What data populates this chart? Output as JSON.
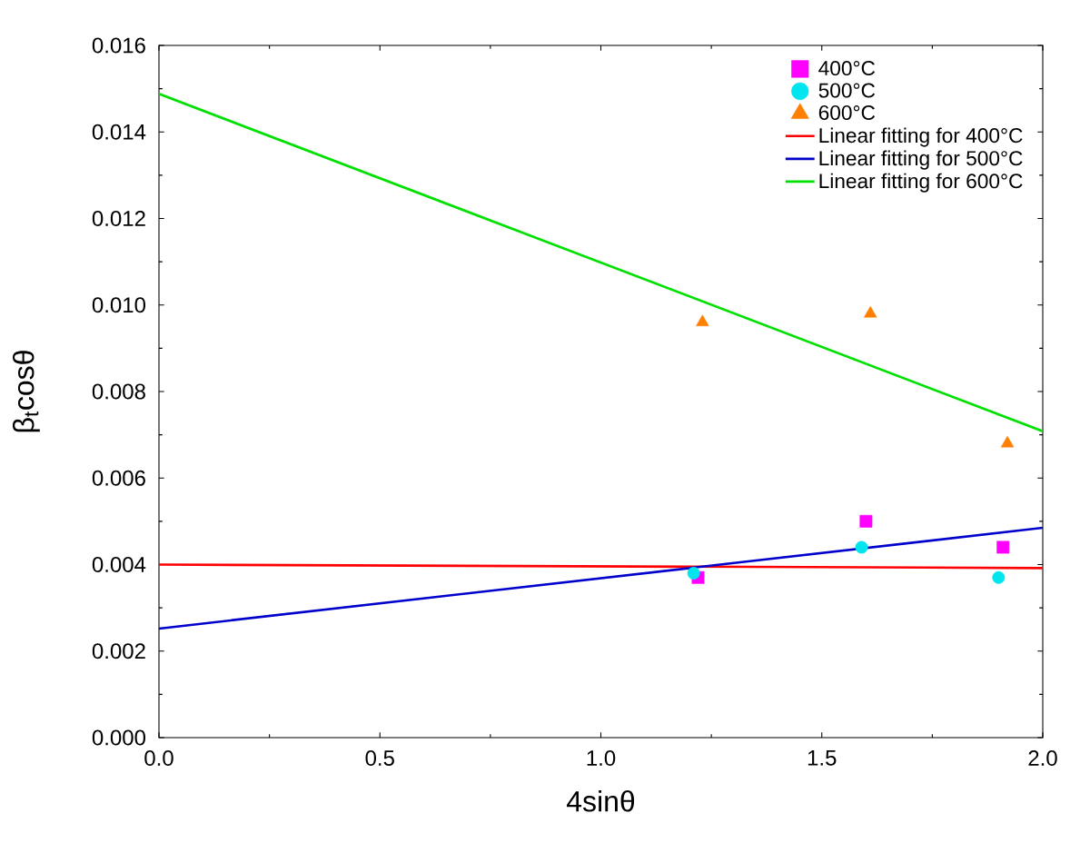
{
  "chart_data": {
    "type": "scatter",
    "xlabel": "4sinθ",
    "ylabel": "β$_{t}$cosθ",
    "xlim": [
      0,
      2
    ],
    "ylim": [
      0,
      0.016
    ],
    "xticks": [
      {
        "value": 0,
        "label": "0.0"
      },
      {
        "value": 0.5,
        "label": "0.5"
      },
      {
        "value": 1,
        "label": "1.0"
      },
      {
        "value": 1.5,
        "label": "1.5"
      },
      {
        "value": 2,
        "label": "2.0"
      }
    ],
    "yticks": [
      {
        "value": 0,
        "label": "0.000"
      },
      {
        "value": 0.002,
        "label": "0.002"
      },
      {
        "value": 0.004,
        "label": "0.004"
      },
      {
        "value": 0.006,
        "label": "0.006"
      },
      {
        "value": 0.008,
        "label": "0.008"
      },
      {
        "value": 0.01,
        "label": "0.010"
      },
      {
        "value": 0.012,
        "label": "0.012"
      },
      {
        "value": 0.014,
        "label": "0.014"
      },
      {
        "value": 0.016,
        "label": "0.016"
      }
    ],
    "grid": false,
    "legend": "top right",
    "series": [
      {
        "name": "400°C",
        "marker": "square",
        "color": "#ff00ff",
        "x": [
          1.22,
          1.6,
          1.91
        ],
        "values": [
          0.0037,
          0.005,
          0.0044
        ]
      },
      {
        "name": "500°C",
        "marker": "circle",
        "color": "#00e5ee",
        "x": [
          1.21,
          1.59,
          1.9
        ],
        "values": [
          0.0038,
          0.0044,
          0.0037
        ]
      },
      {
        "name": "600°C",
        "marker": "triangle",
        "color": "#ff7f00",
        "x": [
          1.23,
          1.61,
          1.92
        ],
        "values": [
          0.0096,
          0.0098,
          0.0068
        ]
      },
      {
        "name": "Linear fitting for 400°C",
        "type": "line",
        "marker": "none",
        "line_style": "solid",
        "color": "#ff0000",
        "x": [
          0,
          2
        ],
        "values": [
          0.004,
          0.00392
        ]
      },
      {
        "name": "Linear fitting for 500°C",
        "type": "line",
        "marker": "none",
        "line_style": "solid",
        "color": "#0000cc",
        "x": [
          0,
          2
        ],
        "values": [
          0.00252,
          0.00485
        ]
      },
      {
        "name": "Linear fitting for 600°C",
        "type": "line",
        "marker": "none",
        "line_style": "solid",
        "color": "#00e000",
        "x": [
          0,
          2
        ],
        "values": [
          0.01488,
          0.00708
        ]
      }
    ]
  }
}
